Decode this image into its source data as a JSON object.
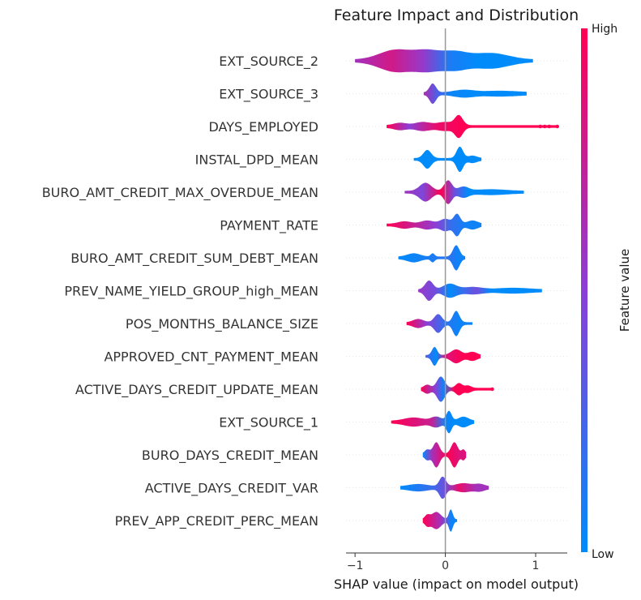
{
  "chart_data": {
    "type": "violin",
    "title": "Feature Impact and Distribution",
    "xlabel": "SHAP value (impact on model output)",
    "xlim": [
      -1.1,
      1.35
    ],
    "xticks": [
      {
        "value": -1,
        "label": "−1"
      },
      {
        "value": 0,
        "label": "0"
      },
      {
        "value": 1,
        "label": "1"
      }
    ],
    "colorbar": {
      "label": "Feature value",
      "high": "High",
      "low": "Low"
    },
    "colors": {
      "low": "#008bfb",
      "mid": "#8b3fd6",
      "high": "#ff0052"
    },
    "features": [
      {
        "name": "EXT_SOURCE_2",
        "min": -1.0,
        "max": 0.97,
        "bumps": [
          [
            -0.55,
            0.25,
            12
          ],
          [
            -0.2,
            0.2,
            10
          ],
          [
            0.1,
            0.2,
            9
          ],
          [
            0.5,
            0.28,
            8
          ]
        ],
        "segments": [
          [
            -1.0,
            0.6
          ],
          [
            -0.6,
            0.8
          ],
          [
            -0.25,
            0.55
          ],
          [
            0.05,
            0.1
          ],
          [
            0.35,
            0.0
          ]
        ]
      },
      {
        "name": "EXT_SOURCE_3",
        "min": -0.24,
        "max": 0.9,
        "bumps": [
          [
            -0.14,
            0.05,
            11
          ],
          [
            0.2,
            0.15,
            3
          ],
          [
            0.6,
            0.3,
            2
          ]
        ],
        "segments": [
          [
            -0.24,
            0.65
          ],
          [
            -0.1,
            0.3
          ],
          [
            0.05,
            0.05
          ],
          [
            0.3,
            0.0
          ]
        ]
      },
      {
        "name": "DAYS_EMPLOYED",
        "min": -0.65,
        "max": 1.25,
        "bumps": [
          [
            -0.5,
            0.1,
            3
          ],
          [
            -0.25,
            0.12,
            4
          ],
          [
            0.15,
            0.06,
            12
          ],
          [
            0.0,
            0.12,
            4
          ]
        ],
        "segments": [
          [
            -0.65,
            1.0
          ],
          [
            -0.4,
            0.5
          ],
          [
            -0.1,
            0.9
          ],
          [
            0.2,
            1.0
          ]
        ],
        "dots": [
          [
            1.05,
            1.0
          ],
          [
            1.1,
            1.0
          ],
          [
            1.15,
            1.0
          ],
          [
            1.24,
            1.0
          ]
        ]
      },
      {
        "name": "INSTAL_DPD_MEAN",
        "min": -0.35,
        "max": 0.4,
        "bumps": [
          [
            -0.2,
            0.06,
            10
          ],
          [
            0.16,
            0.05,
            14
          ],
          [
            0.3,
            0.07,
            3
          ]
        ],
        "segments": [
          [
            -0.35,
            0.0
          ],
          [
            0.0,
            0.0
          ]
        ]
      },
      {
        "name": "BURO_AMT_CREDIT_MAX_OVERDUE_MEAN",
        "min": -0.45,
        "max": 0.87,
        "bumps": [
          [
            -0.22,
            0.09,
            10
          ],
          [
            0.03,
            0.06,
            13
          ],
          [
            0.2,
            0.08,
            5
          ],
          [
            0.5,
            0.25,
            2
          ]
        ],
        "segments": [
          [
            -0.45,
            0.6
          ],
          [
            -0.25,
            0.45
          ],
          [
            -0.05,
            1.0
          ],
          [
            0.1,
            0.4
          ],
          [
            0.25,
            0.0
          ]
        ]
      },
      {
        "name": "PAYMENT_RATE",
        "min": -0.65,
        "max": 0.4,
        "bumps": [
          [
            -0.45,
            0.1,
            3
          ],
          [
            -0.2,
            0.1,
            4
          ],
          [
            0.0,
            0.08,
            6
          ],
          [
            0.13,
            0.05,
            12
          ],
          [
            0.3,
            0.08,
            4
          ]
        ],
        "segments": [
          [
            -0.65,
            1.0
          ],
          [
            -0.35,
            0.75
          ],
          [
            -0.1,
            0.5
          ],
          [
            0.05,
            0.2
          ],
          [
            0.25,
            0.05
          ]
        ]
      },
      {
        "name": "BURO_AMT_CREDIT_SUM_DEBT_MEAN",
        "min": -0.52,
        "max": 0.22,
        "bumps": [
          [
            -0.35,
            0.1,
            4
          ],
          [
            -0.14,
            0.03,
            4
          ],
          [
            0.12,
            0.05,
            14
          ]
        ],
        "segments": [
          [
            -0.52,
            0.0
          ],
          [
            0.05,
            0.15
          ],
          [
            0.15,
            0.05
          ]
        ]
      },
      {
        "name": "PREV_NAME_YIELD_GROUP_high_MEAN",
        "min": -0.3,
        "max": 1.07,
        "bumps": [
          [
            -0.18,
            0.06,
            11
          ],
          [
            0.05,
            0.1,
            7
          ],
          [
            0.3,
            0.15,
            3
          ],
          [
            0.75,
            0.25,
            2
          ]
        ],
        "segments": [
          [
            -0.3,
            0.55
          ],
          [
            -0.1,
            0.4
          ],
          [
            0.05,
            0.0
          ],
          [
            0.35,
            0.4
          ],
          [
            0.5,
            0.0
          ]
        ]
      },
      {
        "name": "POS_MONTHS_BALANCE_SIZE",
        "min": -0.43,
        "max": 0.3,
        "bumps": [
          [
            -0.3,
            0.08,
            4
          ],
          [
            -0.08,
            0.06,
            10
          ],
          [
            0.12,
            0.05,
            14
          ]
        ],
        "segments": [
          [
            -0.43,
            1.0
          ],
          [
            -0.2,
            0.5
          ],
          [
            0.0,
            0.15
          ],
          [
            0.15,
            0.05
          ]
        ]
      },
      {
        "name": "APPROVED_CNT_PAYMENT_MEAN",
        "min": -0.22,
        "max": 0.39,
        "bumps": [
          [
            -0.12,
            0.04,
            10
          ],
          [
            0.12,
            0.08,
            7
          ],
          [
            0.3,
            0.07,
            4
          ]
        ],
        "segments": [
          [
            -0.22,
            0.3
          ],
          [
            -0.1,
            0.0
          ],
          [
            0.0,
            0.85
          ],
          [
            0.2,
            1.0
          ]
        ]
      },
      {
        "name": "ACTIVE_DAYS_CREDIT_UPDATE_MEAN",
        "min": -0.27,
        "max": 0.53,
        "bumps": [
          [
            -0.05,
            0.06,
            14
          ],
          [
            -0.2,
            0.05,
            4
          ],
          [
            0.15,
            0.05,
            6
          ],
          [
            0.25,
            0.05,
            3
          ]
        ],
        "segments": [
          [
            -0.27,
            1.0
          ],
          [
            -0.1,
            0.45
          ],
          [
            -0.02,
            0.05
          ],
          [
            0.1,
            1.0
          ]
        ],
        "dots": [
          [
            0.52,
            1.0
          ]
        ]
      },
      {
        "name": "EXT_SOURCE_1",
        "min": -0.6,
        "max": 0.32,
        "bumps": [
          [
            -0.35,
            0.15,
            4
          ],
          [
            -0.1,
            0.08,
            5
          ],
          [
            0.04,
            0.04,
            12
          ],
          [
            0.2,
            0.08,
            5
          ]
        ],
        "segments": [
          [
            -0.6,
            1.0
          ],
          [
            -0.15,
            0.75
          ],
          [
            0.0,
            0.05
          ],
          [
            0.1,
            0.0
          ]
        ]
      },
      {
        "name": "BURO_DAYS_CREDIT_MEAN",
        "min": -0.25,
        "max": 0.23,
        "bumps": [
          [
            -0.1,
            0.05,
            14
          ],
          [
            0.1,
            0.05,
            14
          ],
          [
            -0.2,
            0.04,
            5
          ],
          [
            0.2,
            0.03,
            5
          ]
        ],
        "segments": [
          [
            -0.25,
            0.0
          ],
          [
            -0.15,
            0.6
          ],
          [
            0.02,
            1.0
          ],
          [
            0.15,
            0.85
          ]
        ]
      },
      {
        "name": "ACTIVE_DAYS_CREDIT_VAR",
        "min": -0.5,
        "max": 0.48,
        "bumps": [
          [
            -0.3,
            0.15,
            3
          ],
          [
            -0.03,
            0.05,
            12
          ],
          [
            0.2,
            0.12,
            4
          ],
          [
            0.38,
            0.08,
            3
          ]
        ],
        "segments": [
          [
            -0.5,
            0.0
          ],
          [
            -0.15,
            0.2
          ],
          [
            0.0,
            0.4
          ],
          [
            0.15,
            0.9
          ],
          [
            0.35,
            0.6
          ]
        ]
      },
      {
        "name": "PREV_APP_CREDIT_PERC_MEAN",
        "min": -0.25,
        "max": 0.13,
        "bumps": [
          [
            -0.1,
            0.07,
            9
          ],
          [
            0.06,
            0.03,
            12
          ],
          [
            -0.2,
            0.04,
            5
          ]
        ],
        "segments": [
          [
            -0.25,
            1.0
          ],
          [
            -0.05,
            0.6
          ],
          [
            0.02,
            0.3
          ],
          [
            0.06,
            0.05
          ]
        ]
      }
    ]
  }
}
